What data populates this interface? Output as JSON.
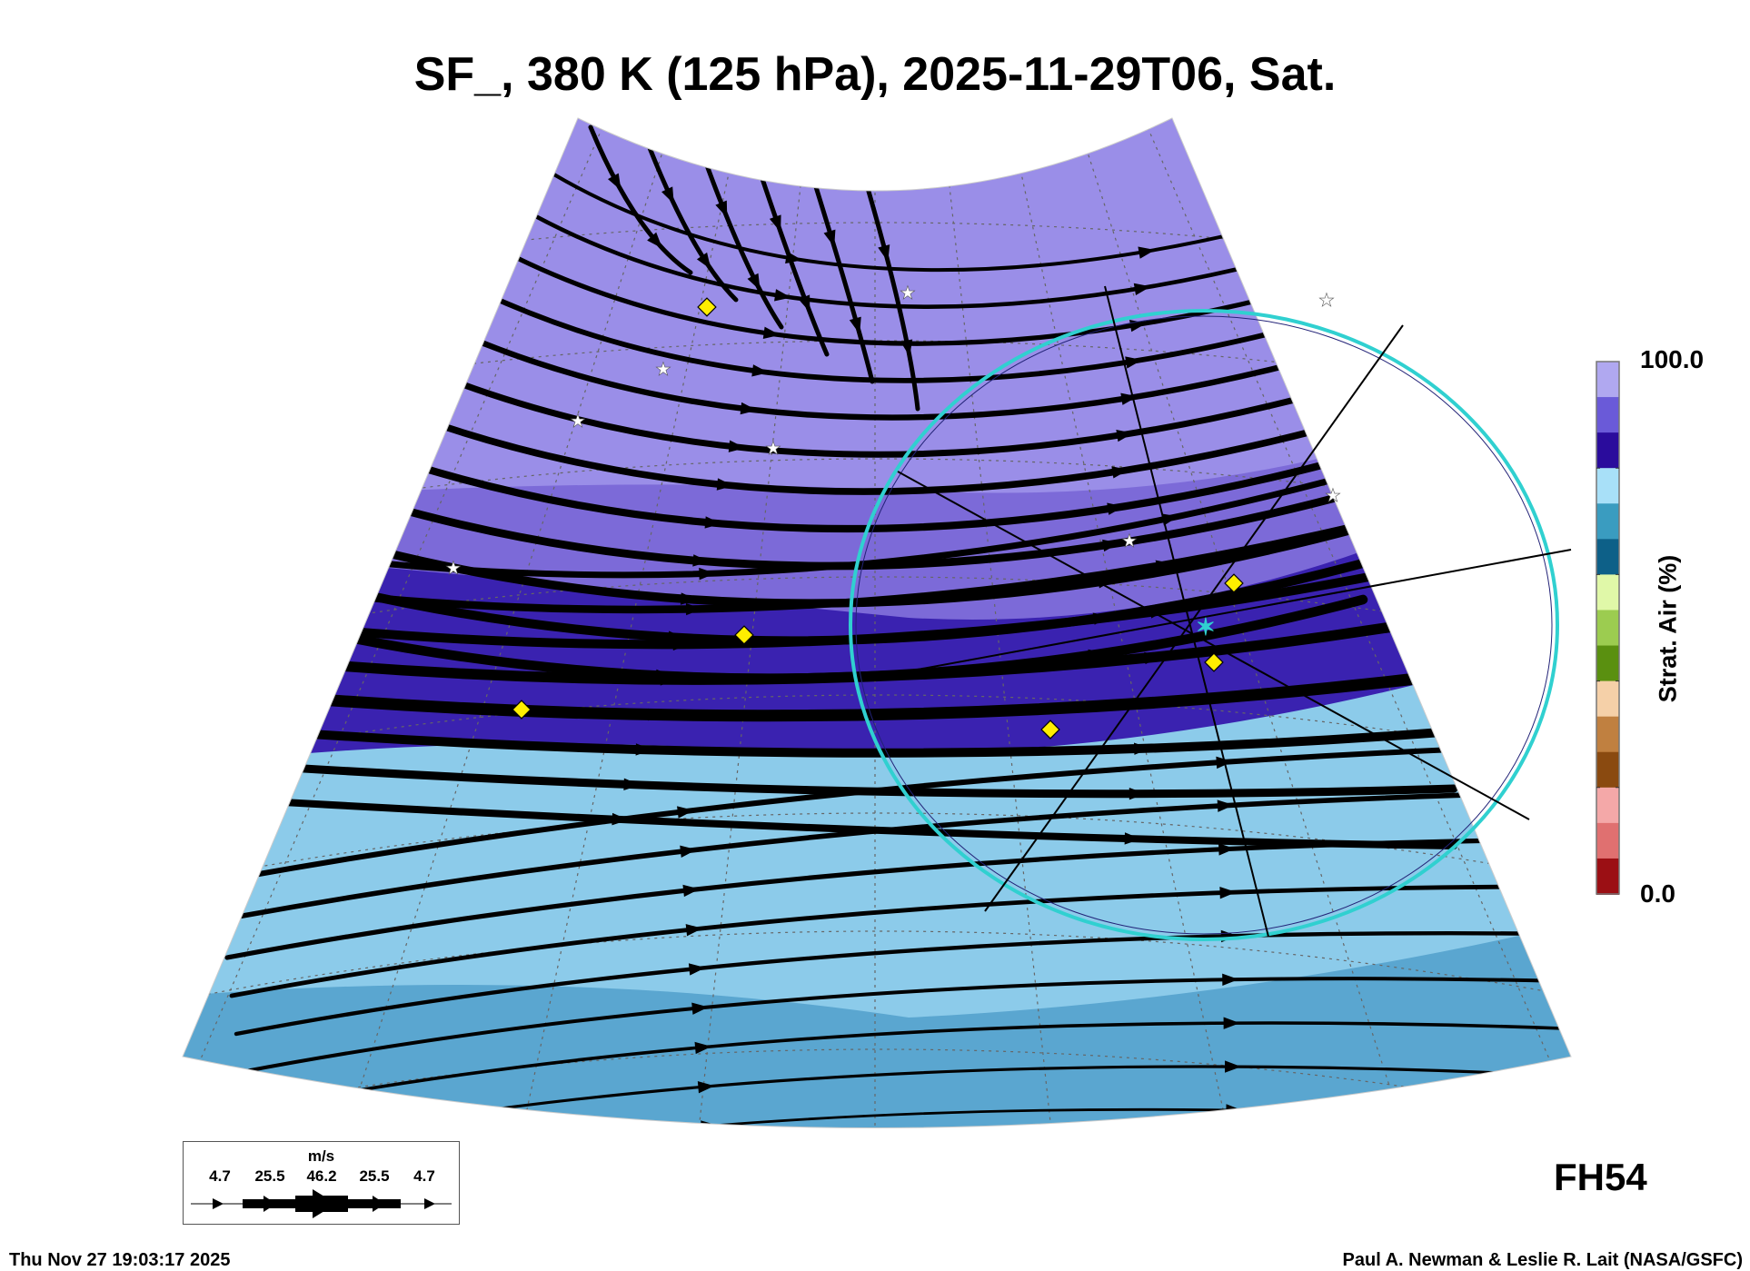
{
  "title": "SF_, 380 K (125 hPa), 2025-11-29T06, Sat.",
  "colorbar": {
    "max_label": "100.0",
    "min_label": "0.0",
    "title": "Strat. Air (%)",
    "colors": [
      "#9b0f14",
      "#e07070",
      "#f4a8a8",
      "#8a4a10",
      "#c08040",
      "#f5d0a8",
      "#5a9010",
      "#9ccc50",
      "#e0f8a8",
      "#0d6088",
      "#3a9cc0",
      "#a8e0f8",
      "#2a0c9c",
      "#6a5ad8",
      "#b0a8f0"
    ]
  },
  "legend": {
    "unit": "m/s",
    "values": [
      "4.7",
      "25.5",
      "46.2",
      "25.5",
      "4.7"
    ]
  },
  "forecast_hour": "FH54",
  "footer": {
    "timestamp": "Thu Nov 27 19:03:17 2025",
    "credit": "Paul A. Newman & Leslie R. Lait (NASA/GSFC)"
  },
  "colors": {
    "strat_high": "#9a8ee8",
    "strat_mid": "#7c6ad8",
    "strat_band": "#3a22b0",
    "trop_light": "#8ccbea",
    "trop_mid": "#5aa6d0",
    "circle": "#30d0d0",
    "marker": "#ffee00"
  }
}
